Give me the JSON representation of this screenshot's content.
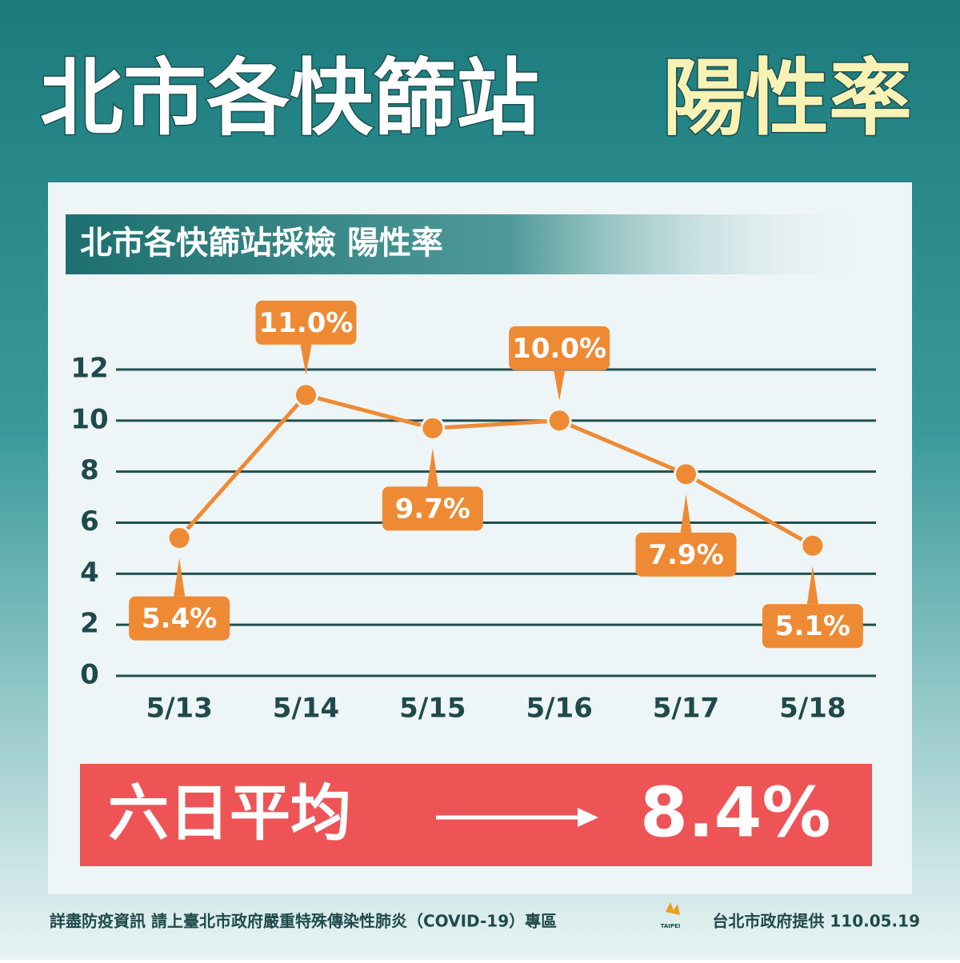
{
  "chart_data": {
    "type": "line",
    "title": "北市各快篩站",
    "title_highlight": "陽性率",
    "subtitle": "北市各快篩站採檢 陽性率",
    "categories": [
      "5/13",
      "5/14",
      "5/15",
      "5/16",
      "5/17",
      "5/18"
    ],
    "values": [
      5.4,
      11.0,
      9.7,
      10.0,
      7.9,
      5.1
    ],
    "value_labels": [
      "5.4%",
      "11.0%",
      "9.7%",
      "10.0%",
      "7.9%",
      "5.1%"
    ],
    "color": "#ee8a34",
    "ylim": [
      0,
      12
    ],
    "yticks": [
      0,
      2,
      4,
      6,
      8,
      10,
      12
    ],
    "grid": true,
    "average": {
      "label": "六日平均",
      "value": 8.4,
      "value_label": "8.4%"
    },
    "footer": {
      "note": "詳盡防疫資訊 請上臺北市政府嚴重特殊傳染性肺炎（COVID-19）專區",
      "logo": "TAIPEI",
      "credit": "台北市政府提供 110.05.19"
    }
  }
}
